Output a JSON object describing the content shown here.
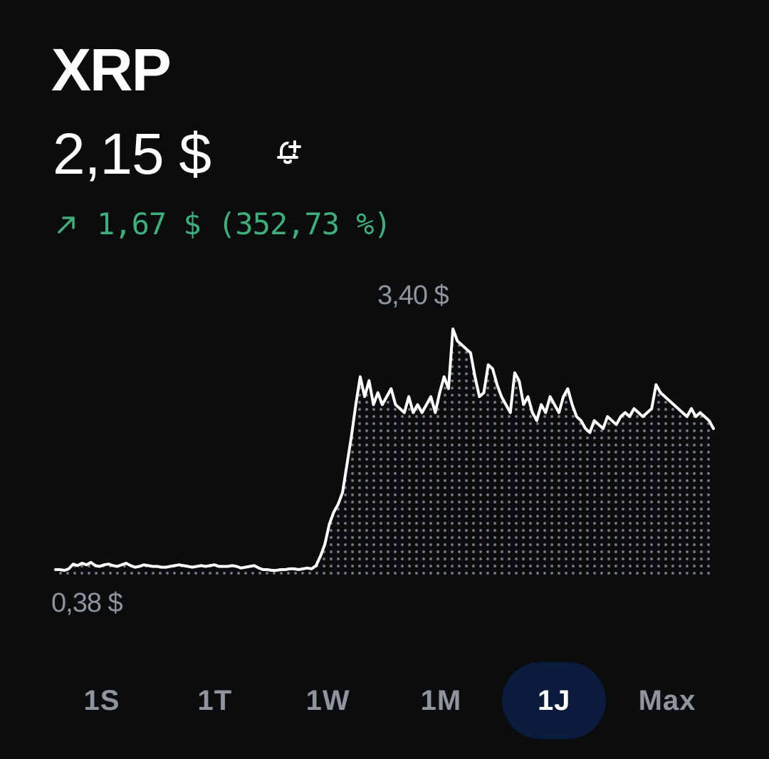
{
  "asset": {
    "name": "XRP",
    "price": "2,15 $",
    "change_text": "1,67 $ (352,73 %)",
    "change_color": "#3fae7a",
    "alert_icon": "bell-plus-icon",
    "change_icon": "arrow-up-right-icon"
  },
  "chart_labels": {
    "max": "3,40 $",
    "min": "0,38 $"
  },
  "range_tabs": [
    {
      "label": "1S",
      "active": false
    },
    {
      "label": "1T",
      "active": false
    },
    {
      "label": "1W",
      "active": false
    },
    {
      "label": "1M",
      "active": false
    },
    {
      "label": "1J",
      "active": true
    },
    {
      "label": "Max",
      "active": false
    }
  ],
  "chart_data": {
    "type": "area",
    "title": "",
    "xlabel": "",
    "ylabel": "",
    "ylim": [
      0.38,
      3.4
    ],
    "grid": false,
    "series": [
      {
        "values": [
          0.38,
          0.38,
          0.37,
          0.39,
          0.45,
          0.43,
          0.46,
          0.44,
          0.47,
          0.43,
          0.42,
          0.44,
          0.45,
          0.43,
          0.42,
          0.44,
          0.46,
          0.43,
          0.41,
          0.42,
          0.44,
          0.43,
          0.42,
          0.42,
          0.41,
          0.41,
          0.42,
          0.43,
          0.44,
          0.43,
          0.42,
          0.41,
          0.42,
          0.43,
          0.42,
          0.43,
          0.44,
          0.42,
          0.42,
          0.42,
          0.43,
          0.42,
          0.4,
          0.41,
          0.42,
          0.43,
          0.4,
          0.38,
          0.38,
          0.37,
          0.37,
          0.38,
          0.38,
          0.39,
          0.39,
          0.38,
          0.39,
          0.4,
          0.39,
          0.43,
          0.55,
          0.7,
          0.95,
          1.1,
          1.2,
          1.35,
          1.7,
          2.05,
          2.45,
          2.8,
          2.55,
          2.75,
          2.45,
          2.6,
          2.45,
          2.55,
          2.65,
          2.45,
          2.4,
          2.35,
          2.55,
          2.35,
          2.45,
          2.35,
          2.45,
          2.55,
          2.35,
          2.6,
          2.8,
          2.65,
          3.4,
          3.25,
          3.2,
          3.15,
          3.1,
          2.8,
          2.55,
          2.6,
          2.95,
          2.9,
          2.7,
          2.55,
          2.45,
          2.35,
          2.85,
          2.75,
          2.45,
          2.55,
          2.35,
          2.25,
          2.45,
          2.35,
          2.55,
          2.45,
          2.35,
          2.55,
          2.65,
          2.45,
          2.3,
          2.25,
          2.15,
          2.1,
          2.25,
          2.2,
          2.15,
          2.3,
          2.25,
          2.2,
          2.3,
          2.35,
          2.3,
          2.4,
          2.35,
          2.3,
          2.35,
          2.4,
          2.7,
          2.6,
          2.55,
          2.5,
          2.45,
          2.4,
          2.35,
          2.3,
          2.4,
          2.3,
          2.35,
          2.3,
          2.25,
          2.15
        ]
      }
    ]
  }
}
